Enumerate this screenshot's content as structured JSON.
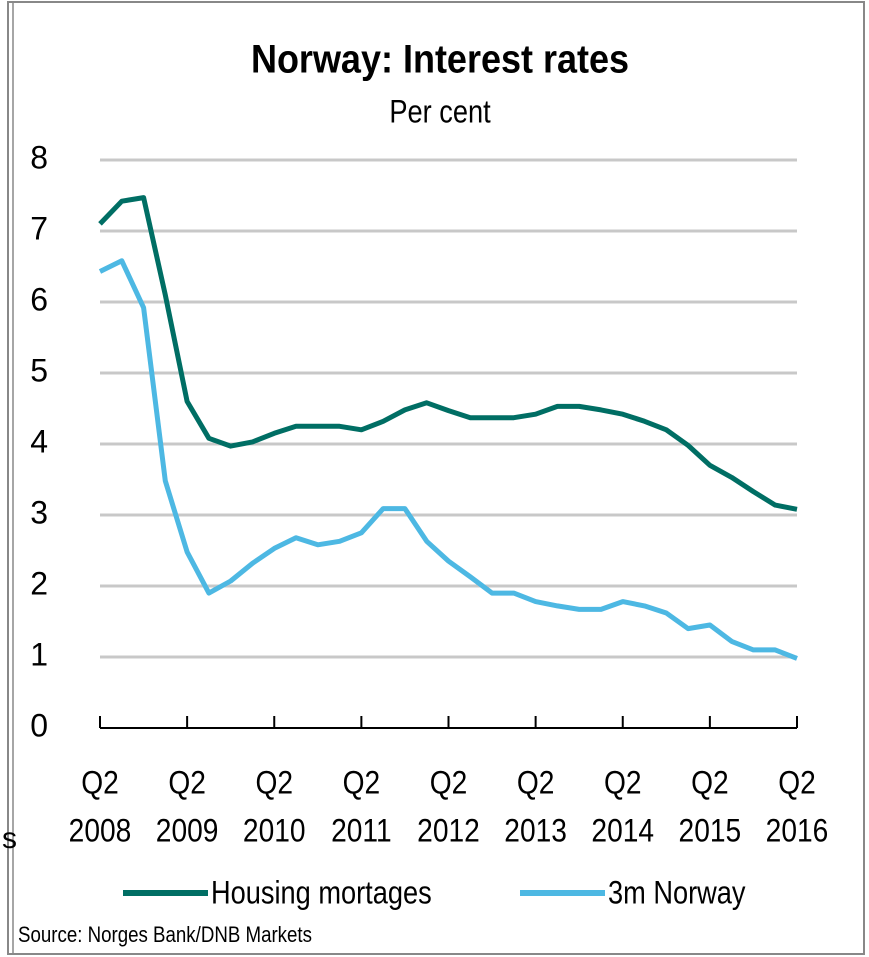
{
  "chart_data": {
    "type": "line",
    "title": "Norway: Interest rates",
    "subtitle": "Per cent",
    "categories": [
      "Q2 2008",
      null,
      null,
      null,
      "Q2 2009",
      null,
      null,
      null,
      "Q2 2010",
      null,
      null,
      null,
      "Q2 2011",
      null,
      null,
      null,
      "Q2 2012",
      null,
      null,
      null,
      "Q2 2013",
      null,
      null,
      null,
      "Q2 2014",
      null,
      null,
      null,
      "Q2 2015",
      null,
      null,
      null,
      "Q2 2016"
    ],
    "series": [
      {
        "name": "Housing mortages",
        "color": "#006e64",
        "values": [
          7.1,
          7.42,
          7.47,
          6.1,
          4.6,
          4.08,
          3.97,
          4.03,
          4.15,
          4.25,
          4.25,
          4.25,
          4.2,
          4.32,
          4.48,
          4.58,
          4.47,
          4.37,
          4.37,
          4.37,
          4.42,
          4.53,
          4.53,
          4.48,
          4.42,
          4.32,
          4.2,
          3.98,
          3.7,
          3.53,
          3.33,
          3.14,
          3.08
        ]
      },
      {
        "name": "3m Norway",
        "color": "#4db8e3",
        "values": [
          6.43,
          6.58,
          5.92,
          3.48,
          2.48,
          1.9,
          2.07,
          2.32,
          2.53,
          2.68,
          2.58,
          2.63,
          2.75,
          3.09,
          3.09,
          2.63,
          2.35,
          2.13,
          1.9,
          1.9,
          1.78,
          1.72,
          1.67,
          1.67,
          1.78,
          1.72,
          1.62,
          1.4,
          1.45,
          1.22,
          1.1,
          1.1,
          0.98
        ]
      }
    ],
    "ylim": [
      0,
      8
    ],
    "yticks": [
      0,
      1,
      2,
      3,
      4,
      5,
      6,
      7,
      8
    ],
    "grid": true,
    "legend": "bottom",
    "source": "Source: Norges Bank/DNB Markets",
    "fragment": "s"
  }
}
